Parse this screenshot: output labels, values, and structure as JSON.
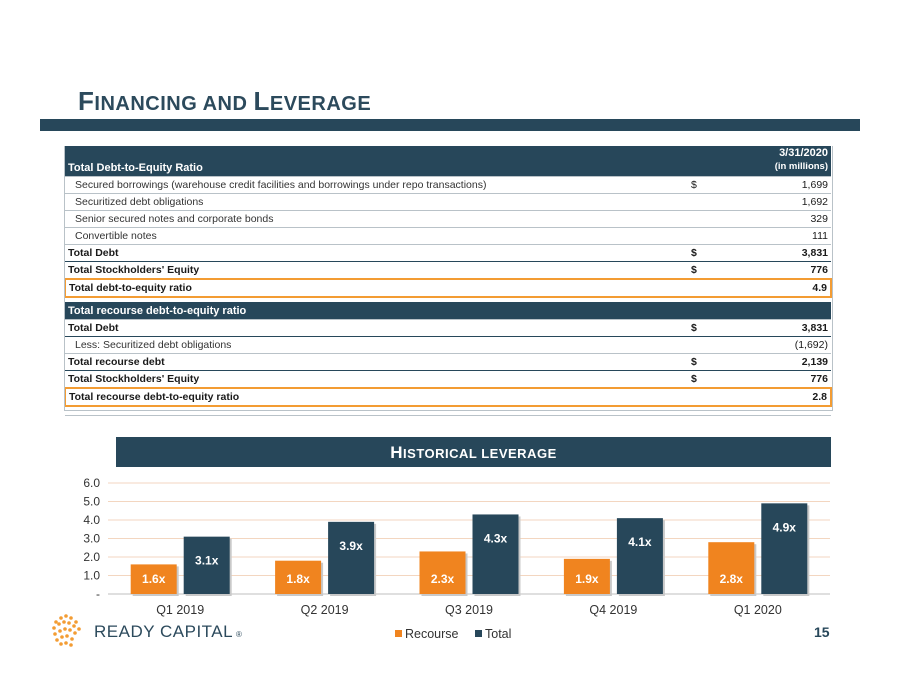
{
  "page": {
    "title_first_big": "F",
    "title_first_rest": "INANCING AND ",
    "title_second_big": "L",
    "title_second_rest": "EVERAGE",
    "page_number": "15"
  },
  "table": {
    "header_title": "Total Debt-to-Equity Ratio",
    "header_date": "3/31/2020",
    "header_units": "(in millions)",
    "rows": [
      {
        "label": "Secured borrowings (warehouse credit facilities and borrowings under repo transactions)",
        "currency": "$",
        "value": "1,699"
      },
      {
        "label": "Securitized debt obligations",
        "currency": "",
        "value": "1,692"
      },
      {
        "label": "Senior secured notes and corporate bonds",
        "currency": "",
        "value": "329"
      },
      {
        "label": "Convertible notes",
        "currency": "",
        "value": "111"
      },
      {
        "label": "Total Debt",
        "currency": "$",
        "value": "3,831"
      },
      {
        "label": "Total Stockholders' Equity",
        "currency": "$",
        "value": "776"
      },
      {
        "label": "Total debt-to-equity ratio",
        "currency": "",
        "value": "4.9"
      }
    ],
    "section2_title": "Total recourse debt-to-equity ratio",
    "rows2": [
      {
        "label": "Total Debt",
        "currency": "$",
        "value": "3,831"
      },
      {
        "label": "Less: Securitized debt obligations",
        "currency": "",
        "value": "(1,692)"
      },
      {
        "label": "Total recourse debt",
        "currency": "$",
        "value": "2,139"
      },
      {
        "label": "Total Stockholders' Equity",
        "currency": "$",
        "value": "776"
      },
      {
        "label": "Total recourse debt-to-equity ratio",
        "currency": "",
        "value": "2.8"
      }
    ]
  },
  "chart_header": {
    "first_big": "H",
    "rest": "ISTORICAL LEVERAGE"
  },
  "logo": {
    "text": "READY CAPITAL",
    "mark": "®",
    "colors": [
      "#f39c33",
      "#2c4a5c"
    ]
  },
  "chart_data": {
    "type": "bar",
    "categories": [
      "Q1 2019",
      "Q2 2019",
      "Q3 2019",
      "Q4 2019",
      "Q1 2020"
    ],
    "series": [
      {
        "name": "Recourse",
        "color": "#f0841f",
        "values": [
          1.6,
          1.8,
          2.3,
          1.9,
          2.8
        ],
        "labels": [
          "1.6x",
          "1.8x",
          "2.3x",
          "1.9x",
          "2.8x"
        ]
      },
      {
        "name": "Total",
        "color": "#27475a",
        "values": [
          3.1,
          3.9,
          4.3,
          4.1,
          4.9
        ],
        "labels": [
          "3.1x",
          "3.9x",
          "4.3x",
          "4.1x",
          "4.9x"
        ]
      }
    ],
    "yticks": [
      "-",
      "1.0",
      "2.0",
      "3.0",
      "4.0",
      "5.0",
      "6.0"
    ],
    "ylim": [
      0,
      6
    ],
    "grid": true,
    "legend_position": "bottom"
  }
}
